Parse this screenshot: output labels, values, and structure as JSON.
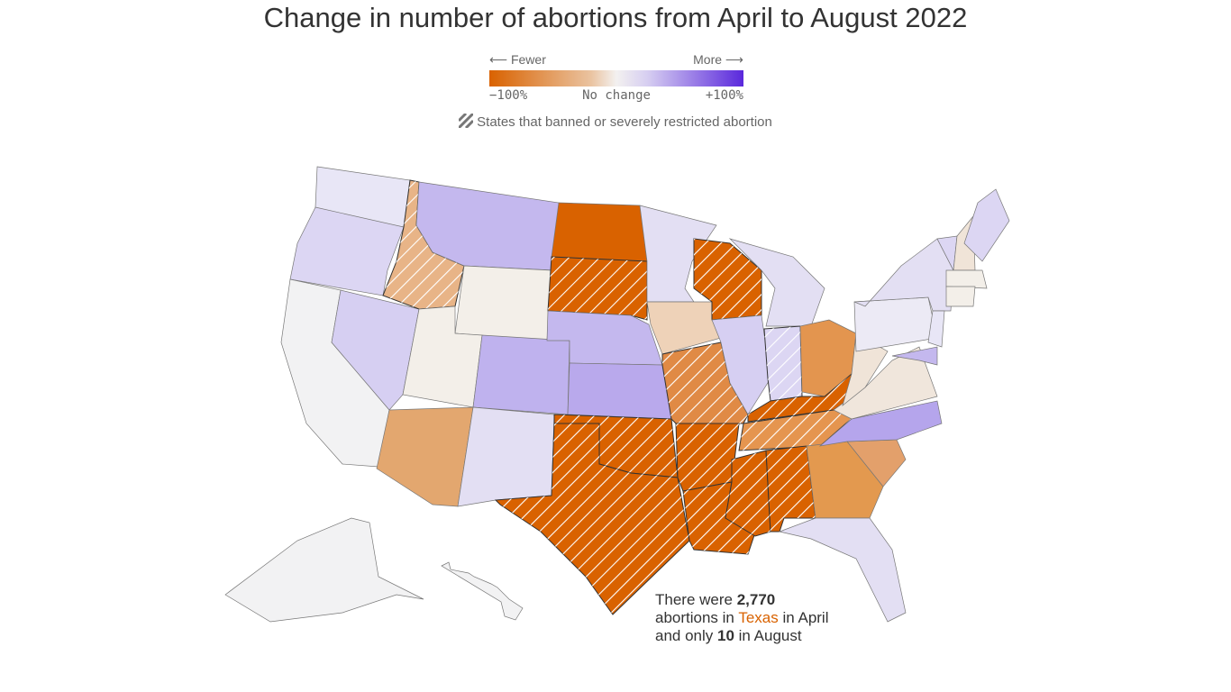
{
  "title": "Change in number of abortions from April to August 2022",
  "legend": {
    "fewer": "⟵ Fewer",
    "more": "More ⟶",
    "min": "−100%",
    "mid": "No change",
    "max": "+100%",
    "hatch_label": "States that banned or severely restricted abortion",
    "colors": {
      "min": "#d96200",
      "mid": "#f3f1f0",
      "max": "#5a28dc"
    }
  },
  "annotation": {
    "p1": "There were ",
    "n1": "2,770",
    "p2": "abortions in ",
    "state": "Texas",
    "p3": " in April",
    "p4": "and only ",
    "n2": "10",
    "p5": " in August"
  },
  "states": [
    {
      "code": "WA",
      "fill": "#e8e6f6",
      "banned": false
    },
    {
      "code": "OR",
      "fill": "#dcd6f3",
      "banned": false
    },
    {
      "code": "CA",
      "fill": "#f2f2f3",
      "banned": false
    },
    {
      "code": "NV",
      "fill": "#d6cff2",
      "banned": false
    },
    {
      "code": "ID",
      "fill": "#e8b487",
      "banned": true
    },
    {
      "code": "MT",
      "fill": "#c4b8ee",
      "banned": false
    },
    {
      "code": "WY",
      "fill": "#f3efe9",
      "banned": false
    },
    {
      "code": "UT",
      "fill": "#f3efe9",
      "banned": false
    },
    {
      "code": "AZ",
      "fill": "#e3a76f",
      "banned": false
    },
    {
      "code": "CO",
      "fill": "#bfb2ee",
      "banned": false
    },
    {
      "code": "NM",
      "fill": "#e3dff3",
      "banned": false
    },
    {
      "code": "ND",
      "fill": "#d96200",
      "banned": false
    },
    {
      "code": "SD",
      "fill": "#d96200",
      "banned": true
    },
    {
      "code": "NE",
      "fill": "#c4b8ee",
      "banned": false
    },
    {
      "code": "KS",
      "fill": "#b9a9ec",
      "banned": false
    },
    {
      "code": "OK",
      "fill": "#d96200",
      "banned": true
    },
    {
      "code": "TX",
      "fill": "#d96200",
      "banned": true
    },
    {
      "code": "MN",
      "fill": "#e3dff3",
      "banned": false
    },
    {
      "code": "IA",
      "fill": "#eed2b8",
      "banned": false
    },
    {
      "code": "MO",
      "fill": "#e08a45",
      "banned": true
    },
    {
      "code": "AR",
      "fill": "#d96200",
      "banned": true
    },
    {
      "code": "LA",
      "fill": "#d96200",
      "banned": true
    },
    {
      "code": "WI",
      "fill": "#d96200",
      "banned": true
    },
    {
      "code": "IL",
      "fill": "#d6cff2",
      "banned": false
    },
    {
      "code": "MI",
      "fill": "#e3dff3",
      "banned": false
    },
    {
      "code": "IN",
      "fill": "#dcd6f3",
      "banned": true
    },
    {
      "code": "OH",
      "fill": "#e3954f",
      "banned": false
    },
    {
      "code": "KY",
      "fill": "#d96200",
      "banned": true
    },
    {
      "code": "TN",
      "fill": "#e5954f",
      "banned": true
    },
    {
      "code": "MS",
      "fill": "#d96200",
      "banned": true
    },
    {
      "code": "AL",
      "fill": "#d96200",
      "banned": true
    },
    {
      "code": "GA",
      "fill": "#e3994f",
      "banned": false
    },
    {
      "code": "FL",
      "fill": "#e3dff3",
      "banned": false
    },
    {
      "code": "SC",
      "fill": "#e3a06b",
      "banned": false
    },
    {
      "code": "NC",
      "fill": "#b5a5ec",
      "banned": false
    },
    {
      "code": "VA",
      "fill": "#f0e6dc",
      "banned": false
    },
    {
      "code": "WV",
      "fill": "#f0e4d8",
      "banned": false
    },
    {
      "code": "PA",
      "fill": "#eceaf5",
      "banned": false
    },
    {
      "code": "NY",
      "fill": "#e3dff3",
      "banned": false
    },
    {
      "code": "NJ",
      "fill": "#e8e6f6",
      "banned": false
    },
    {
      "code": "MD",
      "fill": "#c4b8ee",
      "banned": false
    },
    {
      "code": "VT",
      "fill": "#dcd6f3",
      "banned": false
    },
    {
      "code": "NH",
      "fill": "#f0e4d8",
      "banned": false
    },
    {
      "code": "ME",
      "fill": "#dcd6f3",
      "banned": false
    },
    {
      "code": "MA",
      "fill": "#f3efe9",
      "banned": false
    },
    {
      "code": "CT",
      "fill": "#f3efe9",
      "banned": false
    },
    {
      "code": "AK",
      "fill": "#f2f2f3",
      "banned": false
    },
    {
      "code": "HI",
      "fill": "#f2f2f3",
      "banned": false
    }
  ]
}
